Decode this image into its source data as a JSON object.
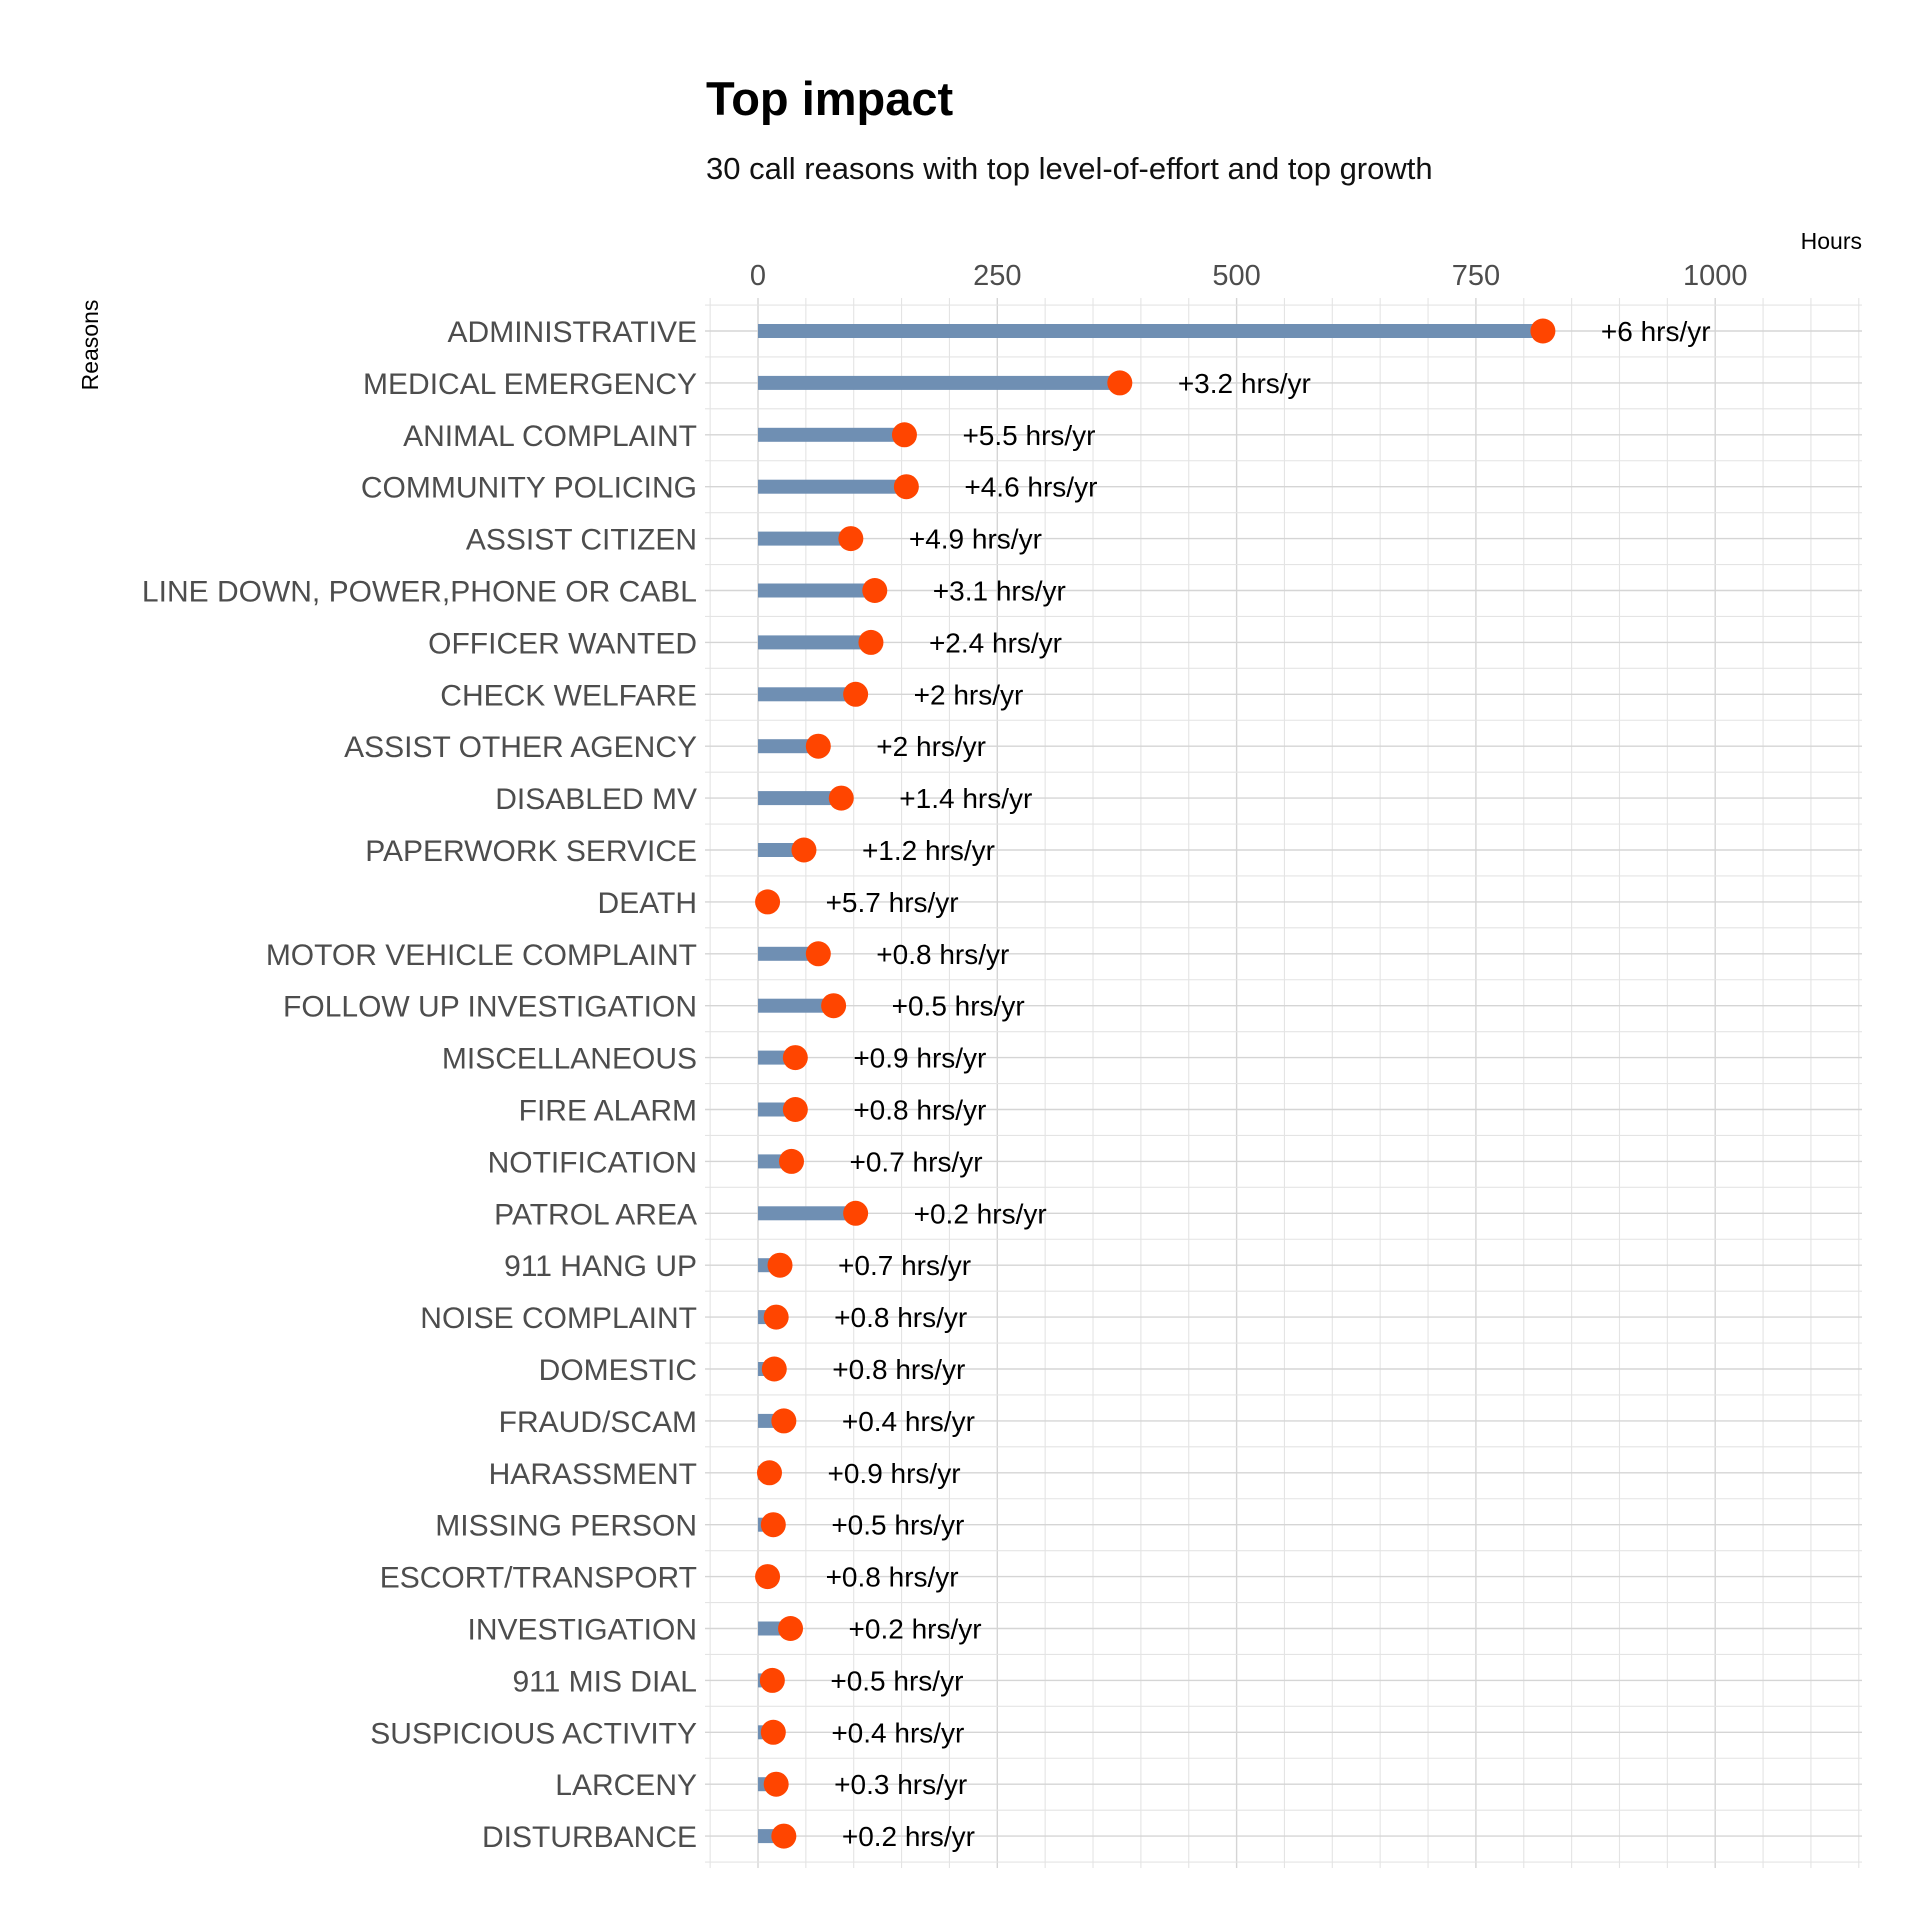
{
  "chart_data": {
    "type": "lollipop",
    "title": "Top impact",
    "subtitle": "30 call reasons with top level-of-effort and top growth",
    "xlabel": "Hours",
    "ylabel": "Reasons",
    "xlim": [
      0,
      1150
    ],
    "x_ticks": [
      0,
      250,
      500,
      750,
      1000
    ],
    "x_tick_labels": [
      "0",
      "250",
      "500",
      "750",
      "1000"
    ],
    "grid": true,
    "axis_position": "top",
    "colors": {
      "bar": "#6f8fb3",
      "point": "#ff4500"
    },
    "categories": [
      "ADMINISTRATIVE",
      "MEDICAL EMERGENCY",
      "ANIMAL COMPLAINT",
      "COMMUNITY POLICING",
      "ASSIST CITIZEN",
      "LINE DOWN, POWER,PHONE OR CABL",
      "OFFICER WANTED",
      "CHECK WELFARE",
      "ASSIST OTHER AGENCY",
      "DISABLED MV",
      "PAPERWORK SERVICE",
      "DEATH",
      "MOTOR VEHICLE COMPLAINT",
      "FOLLOW UP INVESTIGATION",
      "MISCELLANEOUS",
      "FIRE ALARM",
      "NOTIFICATION",
      "PATROL AREA",
      "911 HANG UP",
      "NOISE COMPLAINT",
      "DOMESTIC",
      "FRAUD/SCAM",
      "HARASSMENT",
      "MISSING PERSON",
      "ESCORT/TRANSPORT",
      "INVESTIGATION",
      "911 MIS DIAL",
      "SUSPICIOUS ACTIVITY",
      "LARCENY",
      "DISTURBANCE"
    ],
    "series": [
      {
        "values": [
          820,
          378,
          153,
          155,
          97,
          122,
          118,
          102,
          63,
          87,
          48,
          10,
          63,
          79,
          39,
          39,
          35,
          102,
          23,
          19,
          17,
          27,
          12,
          16,
          10,
          34,
          15,
          16,
          19,
          27
        ]
      },
      {
        "values": [
          820,
          378,
          153,
          155,
          97,
          122,
          118,
          102,
          63,
          87,
          48,
          10,
          63,
          79,
          39,
          39,
          35,
          102,
          23,
          19,
          17,
          27,
          12,
          16,
          10,
          34,
          15,
          16,
          19,
          27
        ]
      }
    ],
    "labels": [
      "+6 hrs/yr",
      "+3.2 hrs/yr",
      "+5.5 hrs/yr",
      "+4.6 hrs/yr",
      "+4.9 hrs/yr",
      "+3.1 hrs/yr",
      "+2.4 hrs/yr",
      "+2 hrs/yr",
      "+2 hrs/yr",
      "+1.4 hrs/yr",
      "+1.2 hrs/yr",
      "+5.7 hrs/yr",
      "+0.8 hrs/yr",
      "+0.5 hrs/yr",
      "+0.9 hrs/yr",
      "+0.8 hrs/yr",
      "+0.7 hrs/yr",
      "+0.2 hrs/yr",
      "+0.7 hrs/yr",
      "+0.8 hrs/yr",
      "+0.8 hrs/yr",
      "+0.4 hrs/yr",
      "+0.9 hrs/yr",
      "+0.5 hrs/yr",
      "+0.8 hrs/yr",
      "+0.2 hrs/yr",
      "+0.5 hrs/yr",
      "+0.4 hrs/yr",
      "+0.3 hrs/yr",
      "+0.2 hrs/yr"
    ]
  }
}
